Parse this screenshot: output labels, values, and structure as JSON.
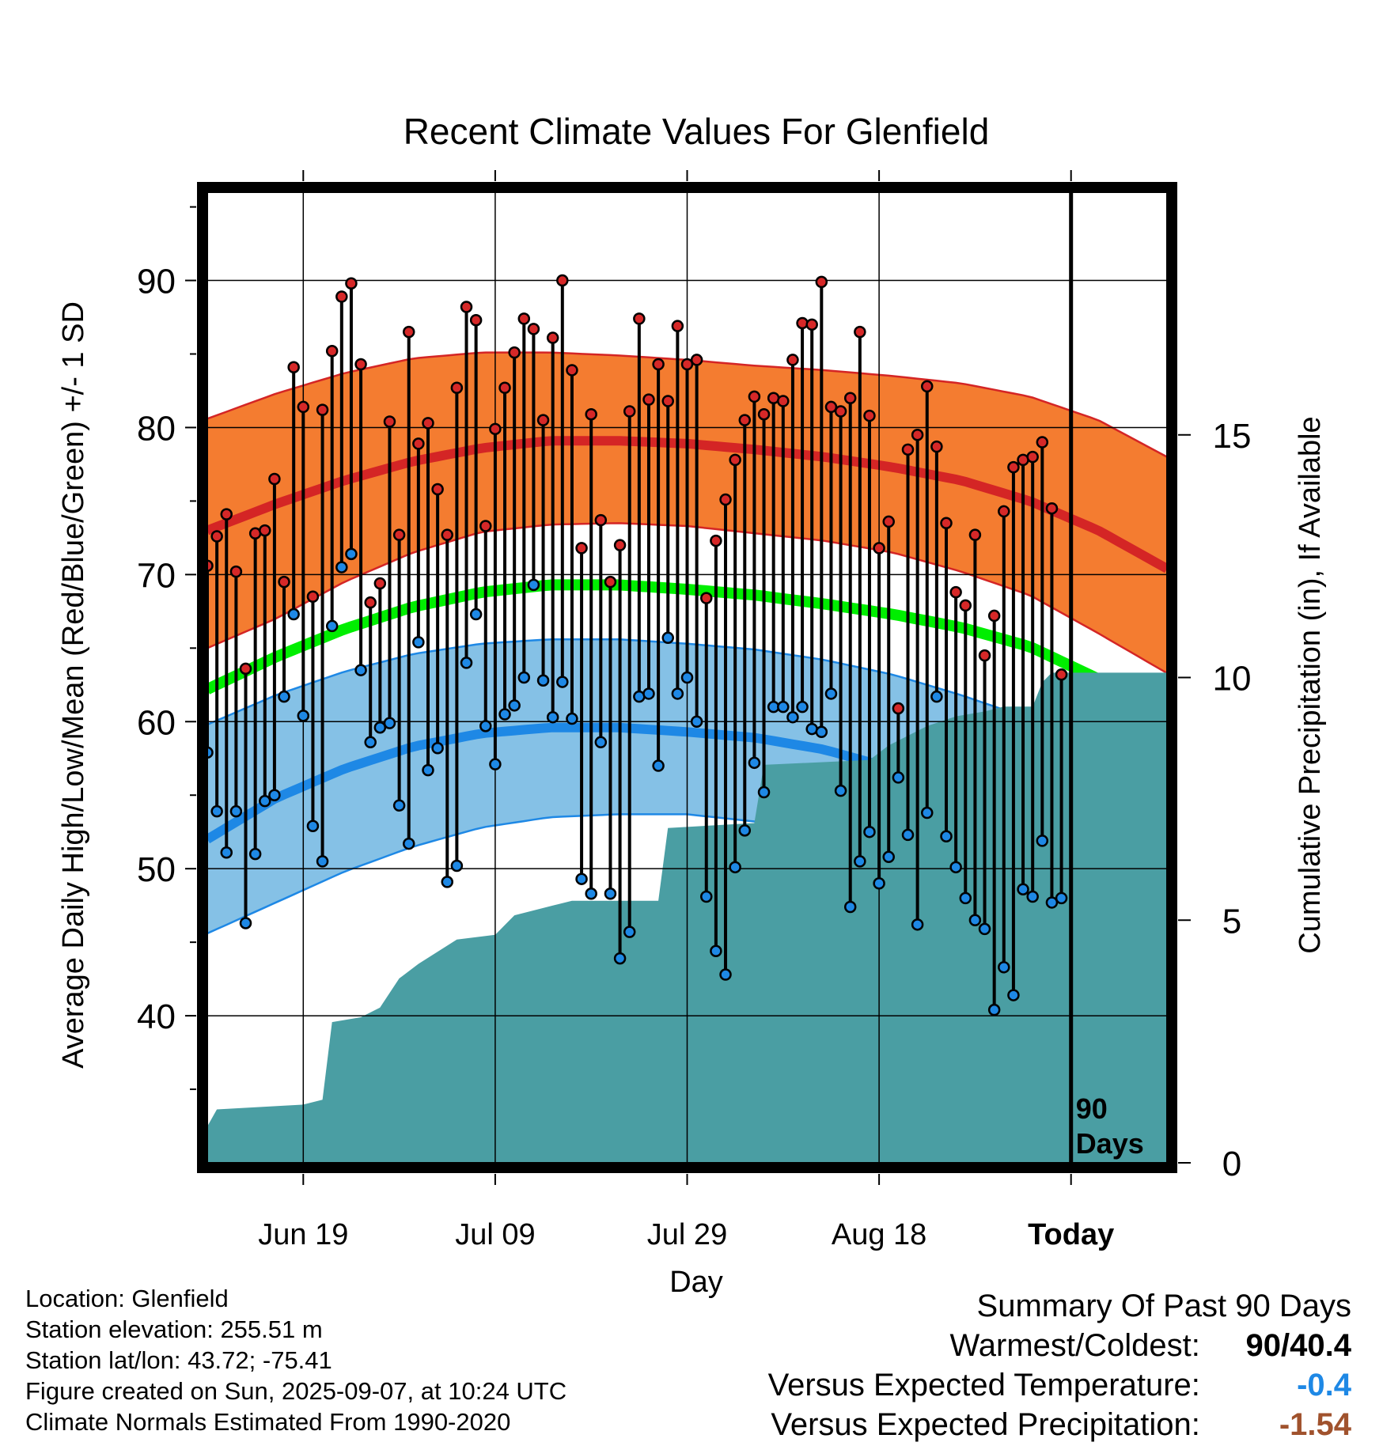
{
  "chart_data": {
    "type": "line",
    "title": "Recent Climate Values For Glenfield",
    "xlabel": "Day",
    "ylabel": "Average Daily High/Low/Mean (Red/Blue/Green) +/- 1 SD",
    "y2label": "Cumulative Precipitation (in), If Available",
    "x_tick_labels": [
      "Jun 19",
      "Jul 09",
      "Jul 29",
      "Aug 18",
      "Today"
    ],
    "x_tick_day_index": [
      10,
      30,
      50,
      70,
      90
    ],
    "days_shown": 100,
    "ylim": [
      30,
      96
    ],
    "y_ticks": [
      40,
      50,
      60,
      70,
      80,
      90
    ],
    "y2lim": [
      0,
      20
    ],
    "y2_ticks": [
      0,
      5,
      10,
      15
    ],
    "today_marker": "90\nDays",
    "grid": true,
    "normals": {
      "high_mean": [
        73.0,
        74.8,
        76.4,
        77.7,
        78.6,
        79.1,
        79.1,
        78.9,
        78.5,
        78.0,
        77.3,
        76.4,
        75.0,
        73.0,
        70.4
      ],
      "high_upper": [
        80.6,
        82.3,
        83.7,
        84.7,
        85.1,
        85.1,
        84.9,
        84.6,
        84.2,
        83.9,
        83.5,
        83.0,
        82.1,
        80.5,
        78.0
      ],
      "high_lower": [
        65.0,
        67.0,
        69.5,
        71.5,
        72.9,
        73.4,
        73.5,
        73.3,
        72.8,
        72.3,
        71.5,
        70.2,
        68.6,
        66.0,
        63.3
      ],
      "mean": [
        62.2,
        64.4,
        66.3,
        67.8,
        68.8,
        69.3,
        69.3,
        69.0,
        68.6,
        68.0,
        67.3,
        66.4,
        65.1,
        62.9,
        60.0
      ],
      "low_mean": [
        52.0,
        54.8,
        56.8,
        58.3,
        59.2,
        59.6,
        59.6,
        59.3,
        58.9,
        58.1,
        56.8,
        55.5,
        54.2,
        52.3,
        49.8
      ],
      "low_upper": [
        59.8,
        61.8,
        63.4,
        64.6,
        65.3,
        65.6,
        65.6,
        65.3,
        64.9,
        64.2,
        63.2,
        61.8,
        60.2,
        58.2,
        57.7
      ],
      "low_lower": [
        45.6,
        47.7,
        49.8,
        51.5,
        52.8,
        53.5,
        53.7,
        53.7,
        53.2,
        52.3,
        50.7,
        48.8,
        46.8,
        43.0,
        41.5
      ]
    },
    "series": [
      {
        "name": "High",
        "values": [
          70.6,
          72.6,
          74.1,
          70.2,
          63.6,
          72.8,
          73.0,
          76.5,
          69.5,
          84.1,
          81.4,
          68.5,
          81.2,
          85.2,
          88.9,
          89.8,
          84.3,
          68.1,
          69.4,
          80.4,
          72.7,
          86.5,
          78.9,
          80.3,
          75.8,
          72.7,
          82.7,
          88.2,
          87.3,
          73.3,
          79.9,
          82.7,
          85.1,
          87.4,
          86.7,
          80.5,
          86.1,
          90.0,
          83.9,
          71.8,
          80.9,
          73.7,
          69.5,
          72.0,
          81.1,
          87.4,
          81.9,
          84.3,
          81.8,
          86.9,
          84.3,
          84.6,
          68.4,
          72.3,
          75.1,
          77.8,
          80.5,
          82.1,
          80.9,
          82.0,
          81.8,
          84.6,
          87.1,
          87.0,
          89.9,
          81.4,
          81.1,
          82.0,
          86.5,
          80.8,
          71.8,
          73.6,
          60.9,
          78.5,
          79.5,
          82.8,
          78.7,
          73.5,
          68.8,
          67.9,
          72.7,
          64.5,
          67.2,
          74.3,
          77.3,
          77.8,
          78.0,
          79.0,
          74.5,
          63.2
        ]
      },
      {
        "name": "Low",
        "values": [
          57.9,
          53.9,
          51.1,
          53.9,
          46.3,
          51.0,
          54.6,
          55.0,
          61.7,
          67.3,
          60.4,
          52.9,
          50.5,
          66.5,
          70.5,
          71.4,
          63.5,
          58.6,
          59.6,
          59.9,
          54.3,
          51.7,
          65.4,
          56.7,
          58.2,
          49.1,
          50.2,
          64.0,
          67.3,
          59.7,
          57.1,
          60.5,
          61.1,
          63.0,
          69.3,
          62.8,
          60.3,
          62.7,
          60.2,
          49.3,
          48.3,
          58.6,
          48.3,
          43.9,
          45.7,
          61.7,
          61.9,
          57.0,
          65.7,
          61.9,
          63.0,
          60.0,
          48.1,
          44.4,
          42.8,
          50.1,
          52.6,
          57.2,
          55.2,
          61.0,
          61.0,
          60.3,
          61.0,
          59.5,
          59.3,
          61.9,
          55.3,
          47.4,
          50.5,
          52.5,
          49.0,
          50.8,
          56.2,
          52.3,
          46.2,
          53.8,
          61.7,
          52.2,
          50.1,
          48.0,
          46.5,
          45.9,
          40.4,
          43.3,
          41.4,
          48.6,
          48.1,
          51.9,
          47.7,
          48.0
        ]
      }
    ],
    "precip_cumulative": [
      [
        0,
        0.75
      ],
      [
        1,
        1.1
      ],
      [
        10,
        1.2
      ],
      [
        12,
        1.3
      ],
      [
        13,
        2.9
      ],
      [
        16,
        3.0
      ],
      [
        18,
        3.2
      ],
      [
        20,
        3.8
      ],
      [
        22,
        4.1
      ],
      [
        26,
        4.6
      ],
      [
        30,
        4.7
      ],
      [
        32,
        5.1
      ],
      [
        36,
        5.3
      ],
      [
        38,
        5.4
      ],
      [
        47,
        5.4
      ],
      [
        48,
        6.9
      ],
      [
        57,
        7.0
      ],
      [
        58,
        8.2
      ],
      [
        69,
        8.3
      ],
      [
        71,
        8.6
      ],
      [
        75,
        9.0
      ],
      [
        78,
        9.2
      ],
      [
        81,
        9.3
      ],
      [
        83,
        9.4
      ],
      [
        86,
        9.4
      ],
      [
        87,
        9.9
      ],
      [
        88,
        10.1
      ],
      [
        100,
        10.1
      ]
    ]
  },
  "meta": {
    "location": "Location: Glenfield",
    "elevation": "Station elevation: 255.51 m",
    "latlon": "Station lat/lon: 43.72; -75.41",
    "created": "Figure created on Sun, 2025-09-07, at 10:24 UTC",
    "normals": "Climate Normals Estimated From 1990-2020"
  },
  "summary": {
    "heading": "Summary Of Past 90 Days",
    "warmest_label": "Warmest/Coldest:",
    "warmest_value": "90/40.4",
    "temp_label": "Versus Expected Temperature:",
    "temp_value": "-0.4",
    "precip_label": "Versus Expected Precipitation:",
    "precip_value": "-1.54"
  },
  "colors": {
    "high_band": "#f47c30",
    "high_line": "#d42525",
    "low_band": "#85c1e6",
    "low_line": "#1e88e5",
    "mean_line": "#00ee00",
    "precip": "#4a9ea3",
    "high_dot": "#d62828",
    "low_dot": "#1e88e5",
    "negative_temp": "#1e88e5",
    "negative_precip": "#a0522d"
  }
}
